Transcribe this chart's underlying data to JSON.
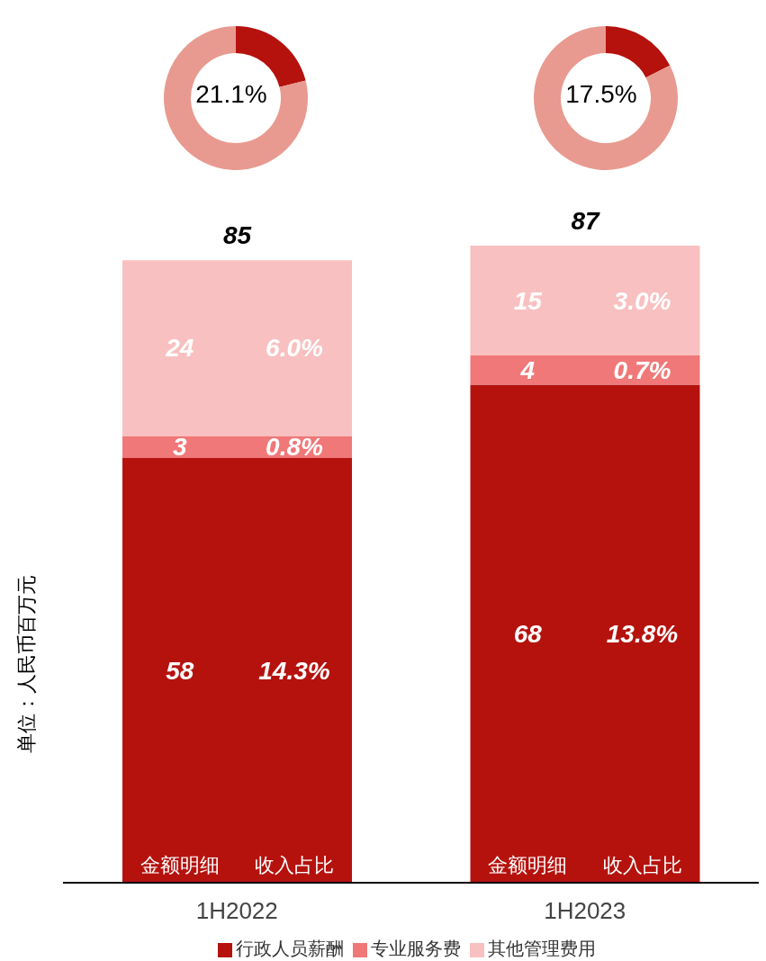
{
  "chart_data": [
    {
      "type": "donut",
      "categories": [
        null,
        null
      ],
      "values": [
        21.1,
        78.9
      ],
      "colors": [
        "#b5120e",
        "#e89a90"
      ],
      "annotations": [
        "21.1%"
      ]
    },
    {
      "type": "donut",
      "categories": [
        null,
        null
      ],
      "values": [
        17.5,
        82.5
      ],
      "colors": [
        "#b5120e",
        "#e89a90"
      ],
      "annotations": [
        "17.5%"
      ]
    },
    {
      "type": "bar",
      "categories": [
        "1H2022",
        "1H2023"
      ],
      "stacked": true,
      "ylabel": "单位：人民币百万元",
      "legend": "bottom",
      "data_labels": true,
      "totals": [
        "85",
        "87"
      ],
      "series": [
        {
          "name": "行政人员薪酬",
          "color": "#b5120e",
          "values": [
            58,
            68
          ]
        },
        {
          "name": "专业服务费",
          "color": "#f07878",
          "values": [
            3,
            4
          ]
        },
        {
          "name": "其他管理费用",
          "color": "#f8c0c0",
          "values": [
            24,
            15
          ]
        }
      ],
      "annotations": [
        "14.3%",
        "0.8%",
        "6.0%",
        "13.8%",
        "0.7%",
        "3.0%",
        "金额明细",
        "收入占比",
        "金额明细",
        "收入占比"
      ]
    }
  ]
}
